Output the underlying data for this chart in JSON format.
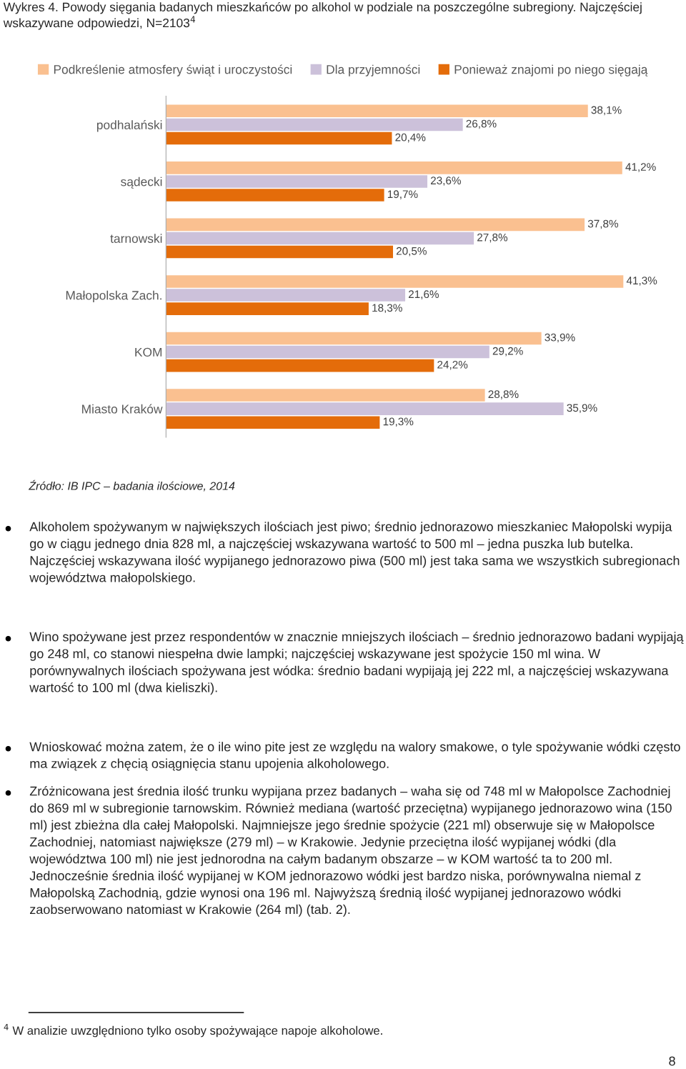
{
  "chart_data": {
    "type": "bar",
    "orientation": "horizontal",
    "title": "Wykres 4. Powody sięgania badanych mieszkańców po alkohol w podziale na poszczególne subregiony. Najczęściej wskazywane odpowiedzi, N=2103$^{4}$",
    "categories": [
      "podhalański",
      "sądecki",
      "tarnowski",
      "Małopolska Zach.",
      "KOM",
      "Miasto Kraków"
    ],
    "series": [
      {
        "name": "Podkreślenie atmosfery świąt i uroczystości",
        "color": "#fac090",
        "values": [
          38.1,
          41.2,
          37.8,
          41.3,
          33.9,
          28.8
        ],
        "value_labels": [
          "38,1%",
          "41,2%",
          "37,8%",
          "41,3%",
          "33,9%",
          "28,8%"
        ]
      },
      {
        "name": "Dla przyjemności",
        "color": "#ccc1da",
        "values": [
          26.8,
          23.6,
          27.8,
          21.6,
          29.2,
          35.9
        ],
        "value_labels": [
          "26,8%",
          "23,6%",
          "27,8%",
          "21,6%",
          "29,2%",
          "35,9%"
        ]
      },
      {
        "name": "Ponieważ znajomi po niego sięgają",
        "color": "#e46c0a",
        "values": [
          20.4,
          19.7,
          20.5,
          18.3,
          24.2,
          19.3
        ],
        "value_labels": [
          "20,4%",
          "19,7%",
          "20,5%",
          "18,3%",
          "24,2%",
          "19,3%"
        ]
      }
    ],
    "legend": "top",
    "grid": false,
    "tick_labels": "y",
    "annotations": [
      "Źródło: IB IPC – badania ilościowe, 2014",
      "Alkoholem spożywanym w największych ilościach jest piwo; średnio jednorazowo mieszkaniec Małopolski wypija go w ciągu jednego dnia 828 ml, a najczęściej wskazywana wartość to 500 ml – jedna puszka lub butelka. Najczęściej wskazywana ilość wypijanego jednorazowo piwa (500 ml) jest taka sama we wszystkich subregionach województwa małopolskiego.",
      "Wino spożywane jest przez respondentów w znacznie mniejszych ilościach – średnio jednorazowo badani wypijają go 248 ml, co stanowi niespełna dwie lampki; najczęściej wskazywane jest spożycie 150 ml wina. W porównywalnych ilościach spożywana jest wódka: średnio badani wypijają jej 222 ml, a najczęściej wskazywana wartość to 100 ml (dwa kieliszki).",
      "Wnioskować można zatem, że o ile wino pite jest ze względu na walory smakowe, o tyle spożywanie wódki często ma związek z chęcią osiągnięcia stanu upojenia alkoholowego.",
      "Zróżnicowana jest średnia ilość trunku wypijana przez badanych – waha się od 748 ml w Małopolsce Zachodniej do 869 ml w subregionie tarnowskim. Również mediana (wartość przeciętna) wypijanego jednorazowo wina (150 ml) jest zbieżna dla całej Małopolski. Najmniejsze jego średnie spożycie (221 ml) obserwuje się w Małopolsce Zachodniej, natomiast największe (279 ml) – w Krakowie. Jedynie przeciętna ilość wypijanej wódki (dla województwa 100 ml) nie jest jednorodna na całym badanym obszarze – w KOM wartość ta to 200 ml. Jednocześnie średnia ilość wypijanej w KOM jednorazowo wódki jest bardzo niska, porównywalna niemal z Małopolską Zachodnią, gdzie wynosi ona 196 ml. Najwyższą średnią ilość wypijanej jednorazowo wódki zaobserwowano natomiast w Krakowie (264 ml) (tab. 2).",
      "$^{4}$ W analizie uwzględniono tylko osoby spożywające napoje alkoholowe.",
      "8"
    ]
  }
}
